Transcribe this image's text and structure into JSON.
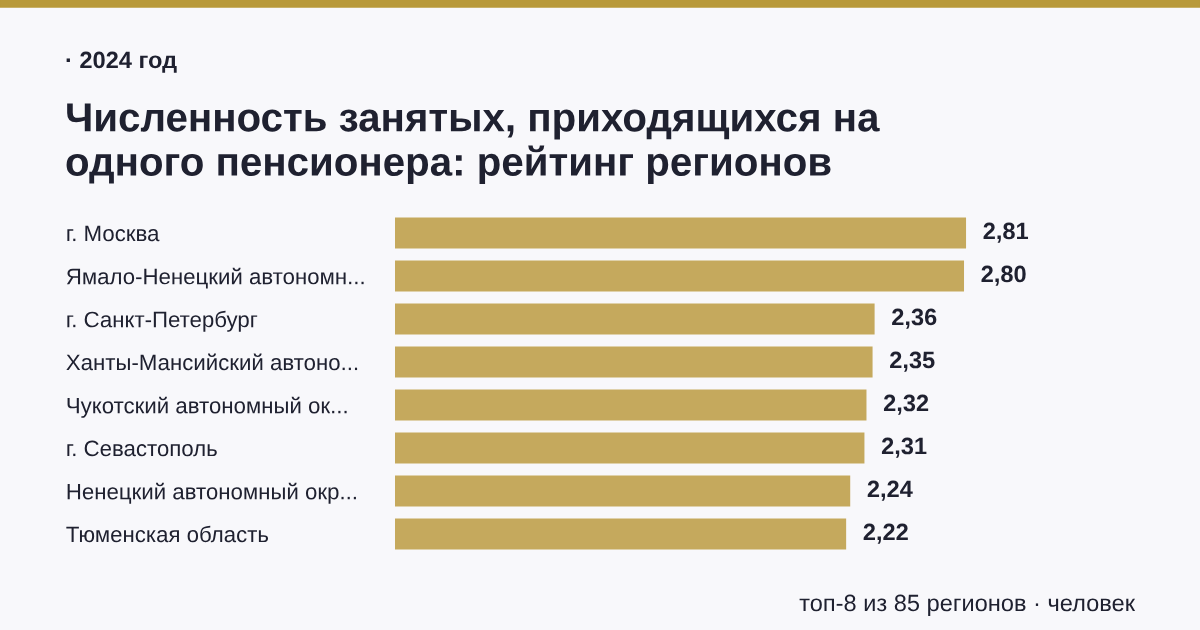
{
  "chart_data": {
    "type": "bar",
    "orientation": "horizontal",
    "subtitle": "· 2024 год",
    "title": "Численность занятых, приходящихся на\nодного пенсионера: рейтинг регионов",
    "categories": [
      "г. Москва",
      "Ямало-Ненецкий автономн...",
      "г. Санкт-Петербург",
      "Ханты-Мансийский автоно...",
      "Чукотский автономный ок...",
      "г. Севастополь",
      "Ненецкий автономный окр...",
      "Тюменская область"
    ],
    "values": [
      2.81,
      2.8,
      2.36,
      2.35,
      2.32,
      2.31,
      2.24,
      2.22
    ],
    "color": "#c5a95d",
    "data_labels": true,
    "value_labels": [
      "2,81",
      "2,80",
      "2,36",
      "2,35",
      "2,32",
      "2,31",
      "2,24",
      "2,22"
    ],
    "grid": false,
    "legend": false,
    "annotations": [
      "топ-8 из 85 регионов · человек"
    ]
  }
}
